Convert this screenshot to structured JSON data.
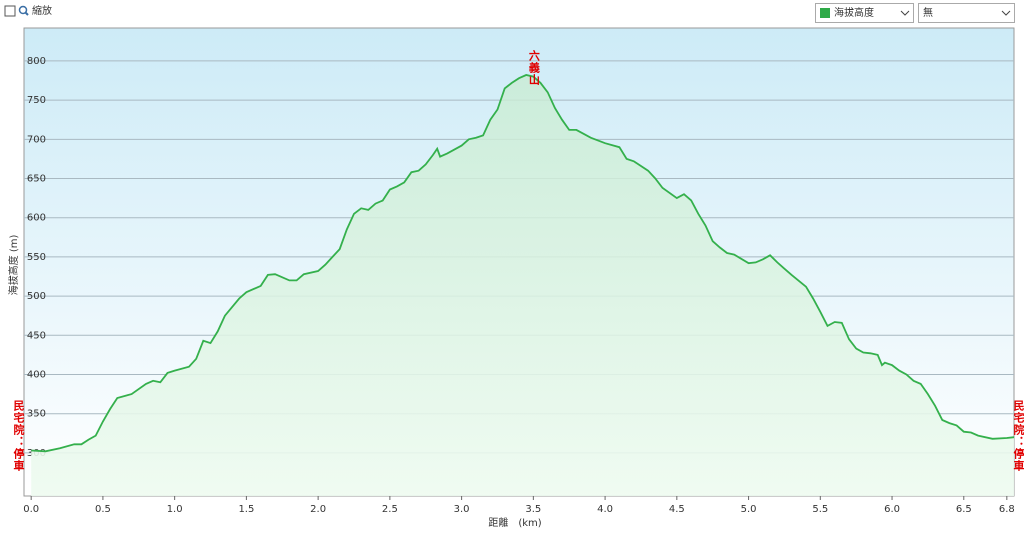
{
  "toolbar": {
    "zoom": "縮放",
    "metric": "海拔高度",
    "overlay": "無"
  },
  "chart_data": {
    "type": "line",
    "x_label": "距離　(km)",
    "y_label": "海拔高度 (m)",
    "x": [
      0.0,
      0.1,
      0.2,
      0.3,
      0.35,
      0.4,
      0.45,
      0.5,
      0.55,
      0.6,
      0.7,
      0.8,
      0.85,
      0.9,
      0.95,
      1.0,
      1.1,
      1.15,
      1.2,
      1.25,
      1.3,
      1.35,
      1.45,
      1.5,
      1.6,
      1.65,
      1.7,
      1.8,
      1.85,
      1.9,
      2.0,
      2.05,
      2.1,
      2.15,
      2.2,
      2.25,
      2.3,
      2.35,
      2.4,
      2.45,
      2.5,
      2.55,
      2.6,
      2.65,
      2.7,
      2.75,
      2.8,
      2.83,
      2.85,
      2.9,
      3.0,
      3.05,
      3.1,
      3.15,
      3.2,
      3.25,
      3.3,
      3.35,
      3.4,
      3.45,
      3.5,
      3.55,
      3.6,
      3.65,
      3.7,
      3.75,
      3.8,
      3.85,
      3.9,
      4.0,
      4.1,
      4.15,
      4.2,
      4.3,
      4.35,
      4.4,
      4.5,
      4.55,
      4.6,
      4.65,
      4.7,
      4.75,
      4.8,
      4.85,
      4.9,
      5.0,
      5.05,
      5.1,
      5.15,
      5.2,
      5.25,
      5.3,
      5.4,
      5.45,
      5.5,
      5.55,
      5.6,
      5.65,
      5.7,
      5.75,
      5.8,
      5.85,
      5.9,
      5.93,
      5.95,
      6.0,
      6.05,
      6.1,
      6.15,
      6.2,
      6.25,
      6.3,
      6.35,
      6.4,
      6.45,
      6.5,
      6.55,
      6.6,
      6.7,
      6.8,
      6.85
    ],
    "series": [
      {
        "name": "海拔高度",
        "color": "#34b04c",
        "values": [
          303,
          302,
          306,
          311,
          311,
          317,
          322,
          340,
          356,
          370,
          375,
          388,
          392,
          390,
          402,
          405,
          410,
          420,
          443,
          440,
          455,
          475,
          497,
          505,
          513,
          527,
          528,
          520,
          520,
          528,
          532,
          540,
          550,
          560,
          585,
          605,
          612,
          610,
          618,
          622,
          636,
          640,
          645,
          658,
          660,
          668,
          680,
          688,
          678,
          682,
          692,
          700,
          702,
          705,
          725,
          738,
          765,
          772,
          778,
          782,
          780,
          772,
          760,
          740,
          725,
          712,
          712,
          707,
          702,
          695,
          690,
          675,
          672,
          660,
          650,
          638,
          625,
          630,
          622,
          605,
          590,
          570,
          562,
          555,
          553,
          542,
          543,
          547,
          552,
          543,
          535,
          527,
          512,
          497,
          480,
          462,
          467,
          466,
          445,
          433,
          428,
          427,
          425,
          412,
          415,
          412,
          405,
          400,
          392,
          388,
          375,
          360,
          342,
          338,
          335,
          327,
          326,
          322,
          318,
          319,
          320
        ]
      }
    ],
    "annotations": [
      {
        "text": "六義山",
        "x": 3.5,
        "side": "top"
      },
      {
        "text": "民宅院：停車",
        "x": 0.0,
        "side": "left"
      },
      {
        "text": "民宅院：停車",
        "x": 6.8,
        "side": "right"
      }
    ],
    "xlim": [
      -0.05,
      6.85
    ],
    "ylim": [
      245,
      842
    ],
    "xticks": [
      {
        "value": 0,
        "label": "0.0"
      },
      0.5,
      {
        "value": 1,
        "label": "1.0"
      },
      1.5,
      {
        "value": 2,
        "label": "2.0"
      },
      2.5,
      {
        "value": 3,
        "label": "3.0"
      },
      3.5,
      {
        "value": 4,
        "label": "4.0"
      },
      4.5,
      {
        "value": 5,
        "label": "5.0"
      },
      5.5,
      {
        "value": 6,
        "label": "6.0"
      },
      6.5,
      6.8
    ],
    "yticks": [
      300,
      350,
      400,
      450,
      500,
      550,
      600,
      650,
      700,
      750,
      800
    ],
    "grid": true
  }
}
